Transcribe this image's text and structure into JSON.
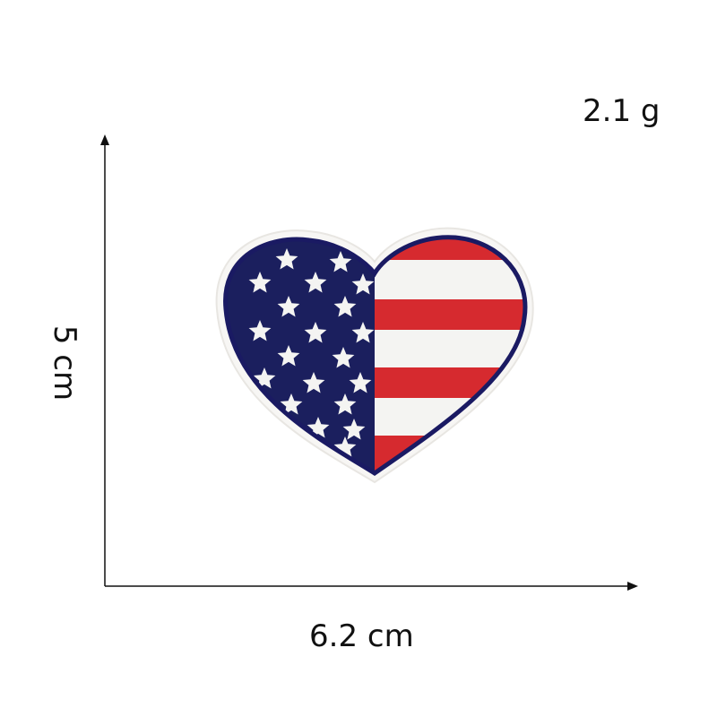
{
  "product": {
    "weight": "2.1 g",
    "width": "6.2 cm",
    "height": "5 cm"
  },
  "patch": {
    "description_icon": "heart-flag-patch",
    "colors": {
      "navy": "#1b1f5e",
      "red": "#d62a2f",
      "white": "#f4f4f2",
      "border": "#1a1a63"
    }
  }
}
